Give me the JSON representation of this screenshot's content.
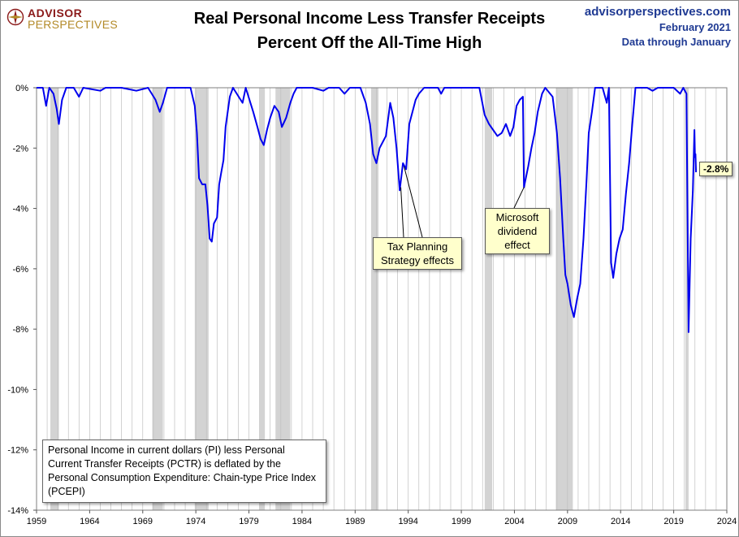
{
  "header": {
    "title_line1": "Real Personal Income Less Transfer Receipts",
    "title_line2": "Percent Off the All-Time High",
    "source_site": "advisorperspectives.com",
    "source_date": "February 2021",
    "source_through": "Data through January"
  },
  "logo": {
    "line1": "ADVISOR",
    "line2": "PERSPECTIVES"
  },
  "note_text": "Personal Income in current dollars  (PI) less Personal Current Transfer Receipts (PCTR) is deflated by the Personal Consumption Expenditure: Chain-type Price Index (PCEPI)",
  "callouts": {
    "tax": "Tax Planning Strategy effects",
    "microsoft": "Microsoft dividend effect",
    "last_value": "-2.8%"
  },
  "colors": {
    "line": "#0000ee",
    "recession": "#d3d3d3",
    "grid": "#bfbfbf",
    "callout_bg": "#ffffcc"
  },
  "chart_data": {
    "type": "line",
    "title": "Real Personal Income Less Transfer Receipts",
    "subtitle": "Percent Off the All-Time High",
    "xlim": [
      1959,
      2024
    ],
    "ylim": [
      -14,
      0
    ],
    "x_ticks": [
      "1959",
      "1964",
      "1969",
      "1974",
      "1979",
      "1984",
      "1989",
      "1994",
      "1999",
      "2004",
      "2009",
      "2014",
      "2019",
      "2024"
    ],
    "y_ticks": [
      "0%",
      "-2%",
      "-4%",
      "-6%",
      "-8%",
      "-10%",
      "-12%",
      "-14%"
    ],
    "grid": "vertical yearly lines",
    "recessions": [
      [
        1960.3,
        1961.1
      ],
      [
        1969.9,
        1970.9
      ],
      [
        1973.9,
        1975.2
      ],
      [
        1980.0,
        1980.5
      ],
      [
        1981.5,
        1982.9
      ],
      [
        1990.5,
        1991.2
      ],
      [
        2001.2,
        2001.9
      ],
      [
        2007.9,
        2009.5
      ],
      [
        2020.1,
        2020.4
      ]
    ],
    "series": [
      {
        "values": [
          [
            1959.0,
            0
          ],
          [
            1959.6,
            0
          ],
          [
            1959.9,
            -0.6
          ],
          [
            1960.2,
            0
          ],
          [
            1960.6,
            -0.2
          ],
          [
            1960.9,
            -0.7
          ],
          [
            1961.1,
            -1.2
          ],
          [
            1961.4,
            -0.4
          ],
          [
            1961.8,
            0
          ],
          [
            1962.5,
            0
          ],
          [
            1963.0,
            -0.3
          ],
          [
            1963.4,
            0
          ],
          [
            1965.0,
            -0.1
          ],
          [
            1965.5,
            0
          ],
          [
            1967.0,
            0
          ],
          [
            1968.4,
            -0.1
          ],
          [
            1969.5,
            0
          ],
          [
            1970.2,
            -0.4
          ],
          [
            1970.6,
            -0.8
          ],
          [
            1970.9,
            -0.5
          ],
          [
            1971.3,
            0
          ],
          [
            1972.5,
            0
          ],
          [
            1973.5,
            0
          ],
          [
            1973.9,
            -0.6
          ],
          [
            1974.1,
            -1.5
          ],
          [
            1974.3,
            -3.0
          ],
          [
            1974.6,
            -3.2
          ],
          [
            1974.9,
            -3.2
          ],
          [
            1975.1,
            -3.9
          ],
          [
            1975.3,
            -5.0
          ],
          [
            1975.5,
            -5.1
          ],
          [
            1975.7,
            -4.5
          ],
          [
            1976.0,
            -4.3
          ],
          [
            1976.2,
            -3.2
          ],
          [
            1976.4,
            -2.8
          ],
          [
            1976.6,
            -2.4
          ],
          [
            1976.8,
            -1.3
          ],
          [
            1977.0,
            -0.8
          ],
          [
            1977.2,
            -0.3
          ],
          [
            1977.5,
            0
          ],
          [
            1978.4,
            -0.5
          ],
          [
            1978.7,
            0
          ],
          [
            1979.4,
            -0.8
          ],
          [
            1979.8,
            -1.3
          ],
          [
            1980.1,
            -1.7
          ],
          [
            1980.4,
            -1.9
          ],
          [
            1980.7,
            -1.4
          ],
          [
            1981.0,
            -1.0
          ],
          [
            1981.4,
            -0.6
          ],
          [
            1981.8,
            -0.8
          ],
          [
            1982.1,
            -1.3
          ],
          [
            1982.5,
            -1.0
          ],
          [
            1982.9,
            -0.5
          ],
          [
            1983.2,
            -0.2
          ],
          [
            1983.5,
            0
          ],
          [
            1985.0,
            0
          ],
          [
            1986.0,
            -0.1
          ],
          [
            1986.5,
            0
          ],
          [
            1987.5,
            0
          ],
          [
            1988.0,
            -0.2
          ],
          [
            1988.5,
            0
          ],
          [
            1989.5,
            0
          ],
          [
            1990.0,
            -0.5
          ],
          [
            1990.4,
            -1.2
          ],
          [
            1990.7,
            -2.2
          ],
          [
            1991.0,
            -2.5
          ],
          [
            1991.3,
            -2.0
          ],
          [
            1991.6,
            -1.8
          ],
          [
            1991.9,
            -1.6
          ],
          [
            1992.3,
            -0.5
          ],
          [
            1992.6,
            -1.0
          ],
          [
            1992.9,
            -2.0
          ],
          [
            1993.2,
            -3.4
          ],
          [
            1993.5,
            -2.5
          ],
          [
            1993.8,
            -2.7
          ],
          [
            1994.1,
            -1.2
          ],
          [
            1994.4,
            -0.8
          ],
          [
            1994.7,
            -0.4
          ],
          [
            1995.0,
            -0.2
          ],
          [
            1995.5,
            0
          ],
          [
            1996.8,
            0
          ],
          [
            1997.1,
            -0.2
          ],
          [
            1997.4,
            0
          ],
          [
            2000.7,
            0
          ],
          [
            2001.2,
            -0.9
          ],
          [
            2001.6,
            -1.2
          ],
          [
            2002.0,
            -1.4
          ],
          [
            2002.4,
            -1.6
          ],
          [
            2002.8,
            -1.5
          ],
          [
            2003.2,
            -1.2
          ],
          [
            2003.6,
            -1.6
          ],
          [
            2003.9,
            -1.3
          ],
          [
            2004.2,
            -0.6
          ],
          [
            2004.5,
            -0.4
          ],
          [
            2004.8,
            -0.3
          ],
          [
            2004.9,
            -3.3
          ],
          [
            2005.3,
            -2.6
          ],
          [
            2005.6,
            -2.0
          ],
          [
            2005.9,
            -1.5
          ],
          [
            2006.2,
            -0.8
          ],
          [
            2006.6,
            -0.2
          ],
          [
            2006.9,
            0
          ],
          [
            2007.6,
            -0.3
          ],
          [
            2008.0,
            -1.5
          ],
          [
            2008.3,
            -3.0
          ],
          [
            2008.6,
            -5.0
          ],
          [
            2008.8,
            -6.2
          ],
          [
            2009.0,
            -6.5
          ],
          [
            2009.3,
            -7.2
          ],
          [
            2009.6,
            -7.6
          ],
          [
            2009.9,
            -7.0
          ],
          [
            2010.2,
            -6.5
          ],
          [
            2010.5,
            -5.0
          ],
          [
            2010.8,
            -3.0
          ],
          [
            2011.0,
            -1.5
          ],
          [
            2011.3,
            -0.8
          ],
          [
            2011.6,
            0
          ],
          [
            2012.3,
            0
          ],
          [
            2012.7,
            -0.5
          ],
          [
            2012.9,
            0
          ],
          [
            2013.1,
            -5.8
          ],
          [
            2013.3,
            -6.3
          ],
          [
            2013.6,
            -5.5
          ],
          [
            2013.9,
            -5.0
          ],
          [
            2014.2,
            -4.7
          ],
          [
            2014.5,
            -3.5
          ],
          [
            2014.8,
            -2.5
          ],
          [
            2015.1,
            -1.2
          ],
          [
            2015.4,
            0
          ],
          [
            2016.5,
            0
          ],
          [
            2017.0,
            -0.1
          ],
          [
            2017.5,
            0
          ],
          [
            2019.0,
            0
          ],
          [
            2019.6,
            -0.2
          ],
          [
            2019.9,
            0
          ],
          [
            2020.2,
            -0.2
          ],
          [
            2020.4,
            -8.1
          ],
          [
            2020.6,
            -5.0
          ],
          [
            2020.8,
            -3.4
          ],
          [
            2020.95,
            -1.4
          ],
          [
            2021.0,
            -2.3
          ],
          [
            2021.05,
            -2.2
          ],
          [
            2021.1,
            -2.8
          ]
        ]
      }
    ]
  }
}
